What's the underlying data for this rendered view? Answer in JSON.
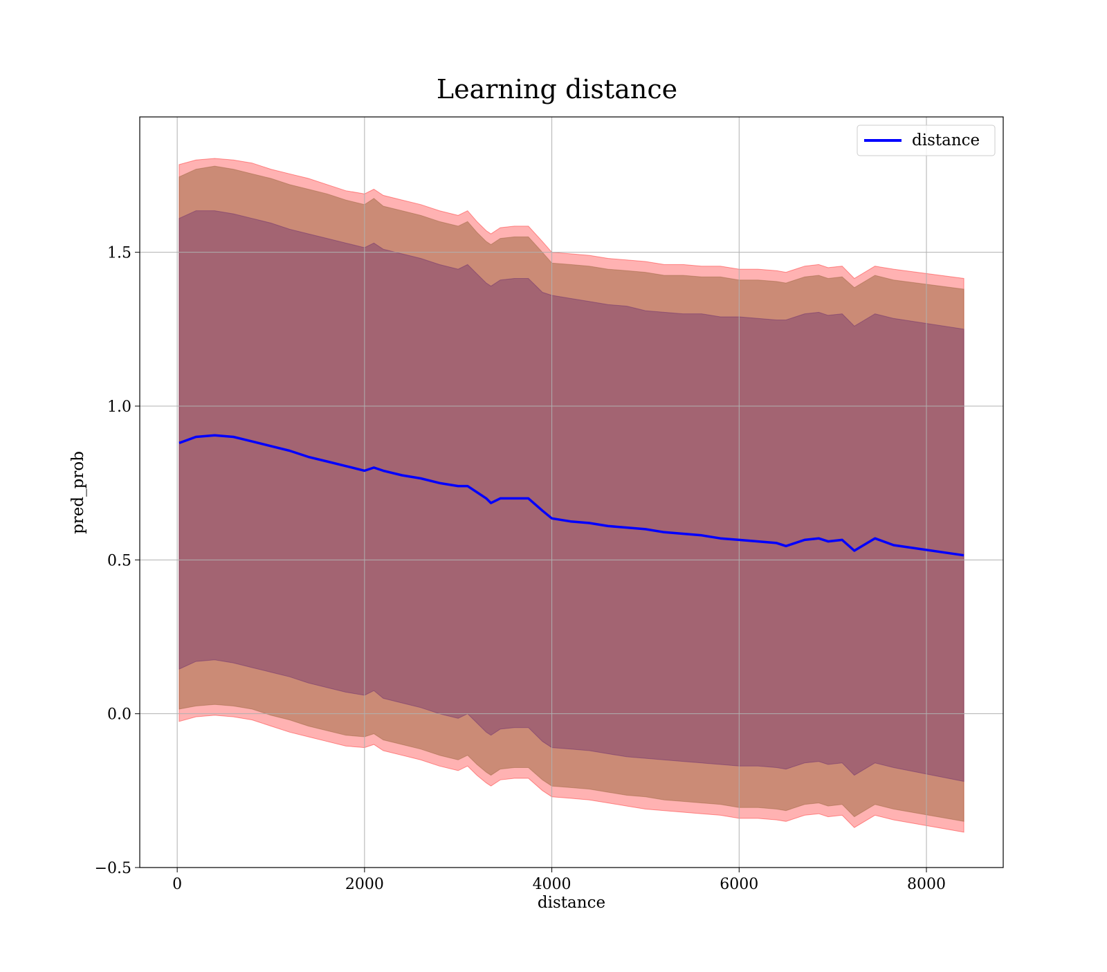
{
  "chart_data": {
    "type": "line",
    "title": "Learning distance",
    "xlabel": "distance",
    "ylabel": "pred_prob",
    "xlim": [
      -400,
      8820
    ],
    "ylim": [
      -0.5,
      1.94
    ],
    "xticks": [
      0,
      2000,
      4000,
      6000,
      8000
    ],
    "xtick_labels": [
      "0",
      "2000",
      "4000",
      "6000",
      "8000"
    ],
    "yticks": [
      -0.5,
      0.0,
      0.5,
      1.0,
      1.5
    ],
    "ytick_labels": [
      "−0.5",
      "0.0",
      "0.5",
      "1.0",
      "1.5"
    ],
    "grid": true,
    "legend": {
      "position": "top-right",
      "entries": [
        "distance"
      ]
    },
    "colors": {
      "line": "#0000ff",
      "band_outer": "#ff0000",
      "band_middle": "#8c5a2c",
      "band_inner": "#5a1e6e",
      "grid": "#b0b0b0"
    },
    "x": [
      20,
      200,
      400,
      600,
      800,
      1000,
      1200,
      1400,
      1600,
      1800,
      2000,
      2100,
      2200,
      2400,
      2600,
      2800,
      3000,
      3100,
      3200,
      3300,
      3350,
      3450,
      3600,
      3750,
      3900,
      4000,
      4200,
      4400,
      4600,
      4800,
      5000,
      5200,
      5400,
      5600,
      5800,
      6000,
      6200,
      6400,
      6500,
      6700,
      6850,
      6950,
      7100,
      7230,
      7450,
      7650,
      8400
    ],
    "series": [
      {
        "name": "distance",
        "values": [
          0.88,
          0.9,
          0.905,
          0.9,
          0.885,
          0.87,
          0.855,
          0.835,
          0.82,
          0.805,
          0.79,
          0.8,
          0.79,
          0.775,
          0.765,
          0.75,
          0.74,
          0.74,
          0.72,
          0.7,
          0.685,
          0.7,
          0.7,
          0.7,
          0.66,
          0.635,
          0.625,
          0.62,
          0.61,
          0.605,
          0.6,
          0.59,
          0.585,
          0.58,
          0.57,
          0.565,
          0.56,
          0.555,
          0.545,
          0.565,
          0.57,
          0.56,
          0.565,
          0.53,
          0.57,
          0.548,
          0.515
        ]
      }
    ],
    "bands": [
      {
        "level": "outer",
        "upper": [
          1.785,
          1.8,
          1.805,
          1.8,
          1.79,
          1.77,
          1.755,
          1.74,
          1.72,
          1.7,
          1.69,
          1.705,
          1.685,
          1.67,
          1.655,
          1.635,
          1.62,
          1.635,
          1.6,
          1.57,
          1.56,
          1.58,
          1.585,
          1.585,
          1.535,
          1.5,
          1.495,
          1.49,
          1.48,
          1.475,
          1.47,
          1.46,
          1.46,
          1.455,
          1.455,
          1.445,
          1.445,
          1.44,
          1.435,
          1.455,
          1.46,
          1.45,
          1.455,
          1.415,
          1.455,
          1.445,
          1.415
        ],
        "lower": [
          -0.025,
          -0.01,
          -0.005,
          -0.01,
          -0.02,
          -0.04,
          -0.06,
          -0.075,
          -0.09,
          -0.105,
          -0.11,
          -0.1,
          -0.12,
          -0.135,
          -0.15,
          -0.17,
          -0.185,
          -0.17,
          -0.2,
          -0.225,
          -0.235,
          -0.215,
          -0.21,
          -0.21,
          -0.25,
          -0.27,
          -0.275,
          -0.28,
          -0.29,
          -0.3,
          -0.31,
          -0.315,
          -0.32,
          -0.325,
          -0.33,
          -0.34,
          -0.34,
          -0.345,
          -0.35,
          -0.33,
          -0.325,
          -0.335,
          -0.33,
          -0.37,
          -0.33,
          -0.345,
          -0.385
        ]
      },
      {
        "level": "middle",
        "upper": [
          1.745,
          1.77,
          1.78,
          1.77,
          1.755,
          1.74,
          1.72,
          1.705,
          1.69,
          1.67,
          1.655,
          1.675,
          1.65,
          1.635,
          1.62,
          1.6,
          1.585,
          1.6,
          1.565,
          1.535,
          1.525,
          1.545,
          1.55,
          1.55,
          1.5,
          1.465,
          1.46,
          1.455,
          1.445,
          1.44,
          1.435,
          1.425,
          1.425,
          1.42,
          1.42,
          1.41,
          1.41,
          1.405,
          1.4,
          1.42,
          1.425,
          1.415,
          1.42,
          1.385,
          1.425,
          1.41,
          1.38
        ],
        "lower": [
          0.015,
          0.025,
          0.03,
          0.025,
          0.015,
          -0.005,
          -0.02,
          -0.04,
          -0.055,
          -0.07,
          -0.075,
          -0.065,
          -0.085,
          -0.1,
          -0.115,
          -0.135,
          -0.15,
          -0.135,
          -0.165,
          -0.19,
          -0.2,
          -0.18,
          -0.175,
          -0.175,
          -0.215,
          -0.235,
          -0.24,
          -0.245,
          -0.255,
          -0.265,
          -0.27,
          -0.28,
          -0.285,
          -0.29,
          -0.295,
          -0.305,
          -0.305,
          -0.31,
          -0.315,
          -0.295,
          -0.29,
          -0.3,
          -0.295,
          -0.335,
          -0.295,
          -0.31,
          -0.35
        ]
      },
      {
        "level": "inner",
        "upper": [
          1.61,
          1.635,
          1.635,
          1.625,
          1.61,
          1.595,
          1.575,
          1.56,
          1.545,
          1.53,
          1.515,
          1.53,
          1.51,
          1.495,
          1.48,
          1.46,
          1.445,
          1.46,
          1.43,
          1.4,
          1.39,
          1.41,
          1.415,
          1.415,
          1.37,
          1.36,
          1.35,
          1.34,
          1.33,
          1.325,
          1.31,
          1.305,
          1.3,
          1.3,
          1.29,
          1.29,
          1.285,
          1.28,
          1.28,
          1.3,
          1.305,
          1.295,
          1.3,
          1.26,
          1.3,
          1.285,
          1.25
        ],
        "lower": [
          0.145,
          0.17,
          0.175,
          0.165,
          0.15,
          0.135,
          0.12,
          0.1,
          0.085,
          0.07,
          0.06,
          0.075,
          0.05,
          0.035,
          0.02,
          0.0,
          -0.015,
          0.0,
          -0.03,
          -0.06,
          -0.07,
          -0.05,
          -0.045,
          -0.045,
          -0.09,
          -0.11,
          -0.115,
          -0.12,
          -0.13,
          -0.14,
          -0.145,
          -0.15,
          -0.155,
          -0.16,
          -0.165,
          -0.17,
          -0.17,
          -0.175,
          -0.18,
          -0.16,
          -0.155,
          -0.165,
          -0.16,
          -0.2,
          -0.16,
          -0.175,
          -0.22
        ]
      }
    ]
  }
}
